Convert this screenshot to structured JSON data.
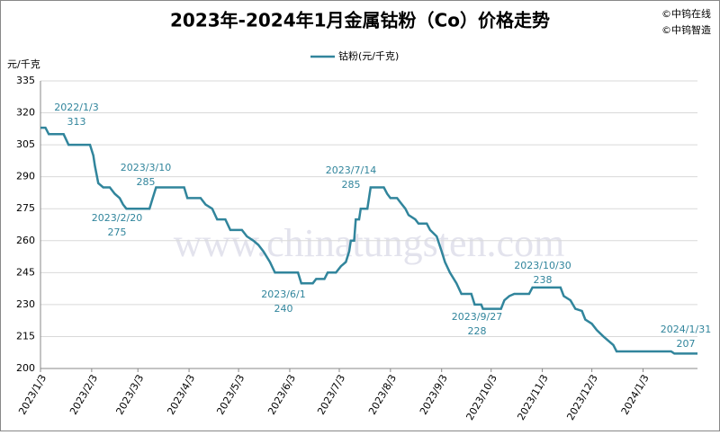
{
  "chart_data": {
    "type": "line",
    "title": "2023年-2024年1月金属钴粉（Co）价格走势",
    "copyright": [
      "©中钨在线",
      "©中钨智造"
    ],
    "watermark": "www.chinatungsten.com",
    "y_label": "元/千克",
    "x": [
      "2023/1/3",
      "2023/1/6",
      "2023/1/8",
      "2023/1/17",
      "2023/1/20",
      "2023/2/2",
      "2023/2/4",
      "2023/2/5",
      "2023/2/7",
      "2023/2/10",
      "2023/2/14",
      "2023/2/17",
      "2023/2/20",
      "2023/2/22",
      "2023/2/24",
      "2023/3/10",
      "2023/3/12",
      "2023/3/14",
      "2023/3/31",
      "2023/4/2",
      "2023/4/10",
      "2023/4/13",
      "2023/4/17",
      "2023/4/20",
      "2023/4/25",
      "2023/4/28",
      "2023/5/5",
      "2023/5/8",
      "2023/5/12",
      "2023/5/15",
      "2023/5/18",
      "2023/5/22",
      "2023/5/25",
      "2023/6/8",
      "2023/6/10",
      "2023/6/17",
      "2023/6/19",
      "2023/6/24",
      "2023/6/26",
      "2023/7/1",
      "2023/7/4",
      "2023/7/7",
      "2023/7/9",
      "2023/7/10",
      "2023/7/12",
      "2023/7/13",
      "2023/7/15",
      "2023/7/16",
      "2023/7/20",
      "2023/7/22",
      "2023/7/30",
      "2023/8/1",
      "2023/8/3",
      "2023/8/7",
      "2023/8/9",
      "2023/8/12",
      "2023/8/14",
      "2023/8/18",
      "2023/8/20",
      "2023/8/25",
      "2023/8/27",
      "2023/8/31",
      "2023/9/3",
      "2023/9/5",
      "2023/9/8",
      "2023/9/12",
      "2023/9/15",
      "2023/9/21",
      "2023/9/23",
      "2023/9/27",
      "2023/9/28",
      "2023/10/9",
      "2023/10/11",
      "2023/10/14",
      "2023/10/17",
      "2023/10/26",
      "2023/10/28",
      "2023/11/14",
      "2023/11/16",
      "2023/11/20",
      "2023/11/23",
      "2023/11/27",
      "2023/11/29",
      "2023/12/3",
      "2023/12/6",
      "2023/12/10",
      "2023/12/13",
      "2023/12/16",
      "2023/12/18",
      "2024/1/20",
      "2024/1/22",
      "2024/2/5"
    ],
    "series": [
      {
        "name": "钴粉(元/千克)",
        "color": "#31859c",
        "values": [
          313,
          313,
          310,
          310,
          305,
          305,
          300,
          295,
          287,
          285,
          285,
          282,
          280,
          277,
          275,
          275,
          280,
          285,
          285,
          280,
          280,
          277,
          275,
          270,
          270,
          265,
          265,
          262,
          260,
          258,
          255,
          250,
          245,
          245,
          240,
          240,
          242,
          242,
          245,
          245,
          248,
          250,
          255,
          260,
          260,
          270,
          270,
          275,
          275,
          285,
          285,
          282,
          280,
          280,
          278,
          275,
          272,
          270,
          268,
          268,
          265,
          262,
          255,
          250,
          245,
          240,
          235,
          235,
          230,
          230,
          228,
          228,
          232,
          234,
          235,
          235,
          238,
          238,
          234,
          232,
          228,
          227,
          223,
          221,
          218,
          215,
          213,
          211,
          208,
          208,
          207,
          207
        ]
      }
    ],
    "annotations": [
      {
        "label": "2022/1/3",
        "value": 313
      },
      {
        "label": "2023/2/20",
        "value": 275
      },
      {
        "label": "2023/3/10",
        "value": 285
      },
      {
        "label": "2023/6/1",
        "value": 240
      },
      {
        "label": "2023/7/14",
        "value": 285
      },
      {
        "label": "2023/9/27",
        "value": 228
      },
      {
        "label": "2023/10/30",
        "value": 238
      },
      {
        "label": "2024/1/31",
        "value": 207
      }
    ],
    "xlim": [
      "2023/1/3",
      "2024/2/5"
    ],
    "xticks": [
      "2023/1/3",
      "2023/2/3",
      "2023/3/3",
      "2023/4/3",
      "2023/5/3",
      "2023/6/3",
      "2023/7/3",
      "2023/8/3",
      "2023/9/3",
      "2023/10/3",
      "2023/11/3",
      "2023/12/3",
      "2024/1/3"
    ],
    "ylim": [
      200,
      335
    ],
    "yticks": [
      200,
      215,
      230,
      245,
      260,
      275,
      290,
      305,
      320,
      335
    ],
    "grid": true
  }
}
